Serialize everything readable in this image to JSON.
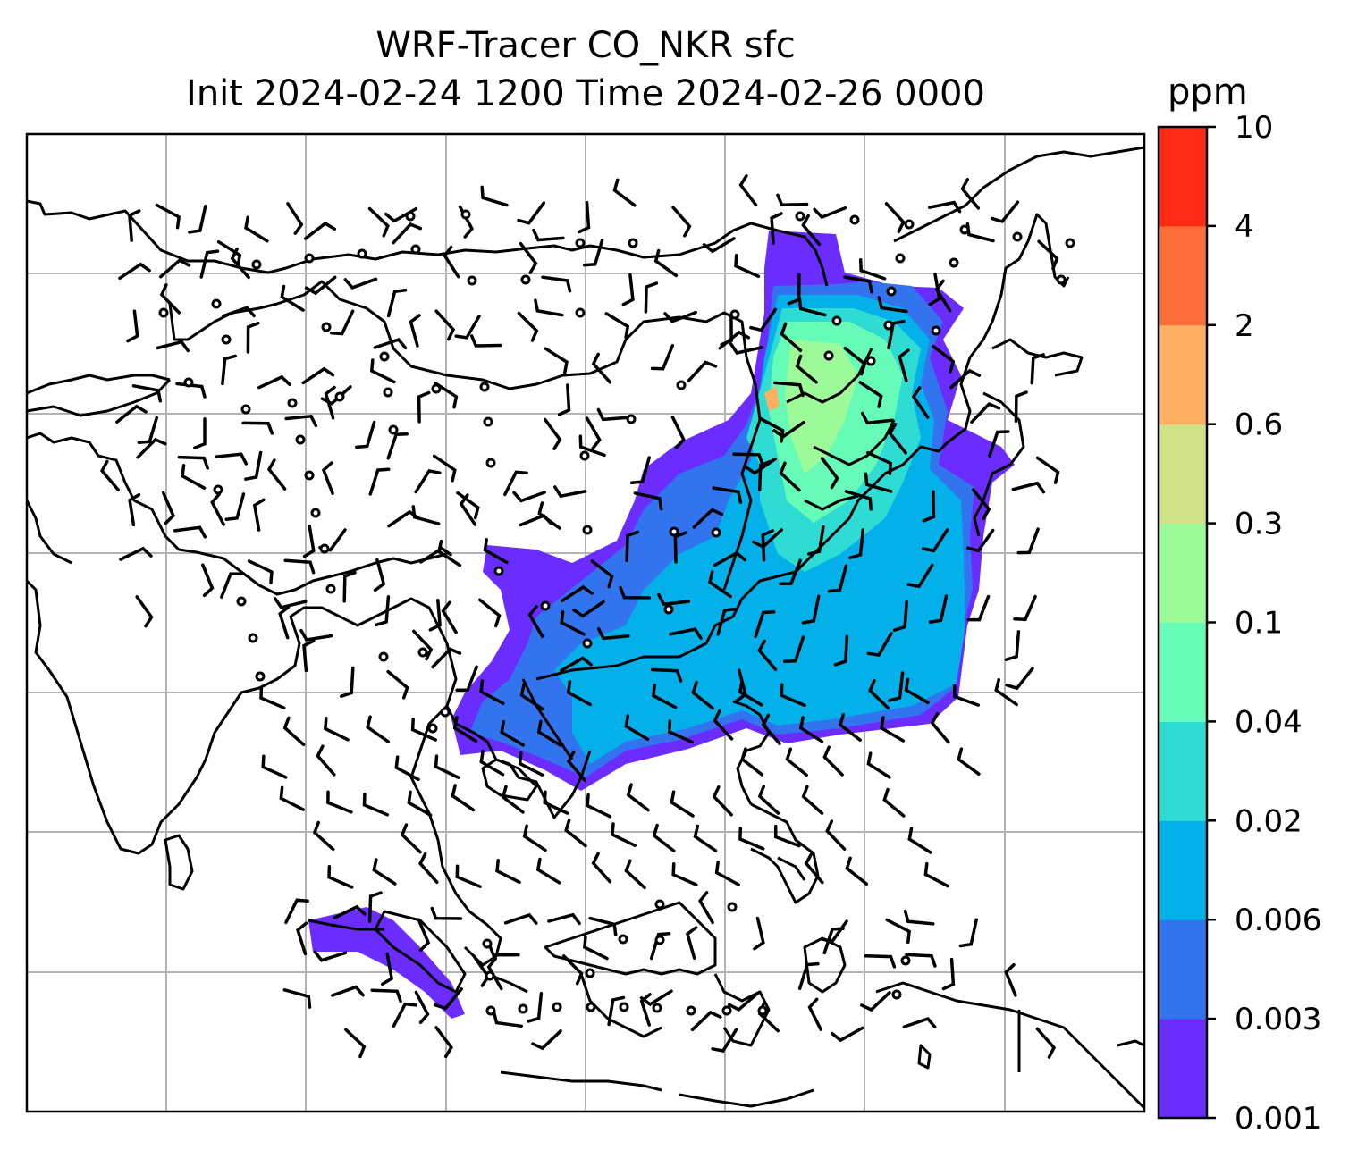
{
  "title": {
    "line1": "WRF-Tracer CO_NKR sfc",
    "line2": "Init 2024-02-24 1200 Time 2024-02-26 0000"
  },
  "colorbar": {
    "unit": "ppm",
    "ticks": [
      "0.001",
      "0.003",
      "0.006",
      "0.02",
      "0.04",
      "0.1",
      "0.3",
      "0.6",
      "2",
      "4",
      "10"
    ],
    "colors": [
      "#6a2cff",
      "#3174ee",
      "#03b0ea",
      "#2fdcd3",
      "#67fbb8",
      "#9dfa99",
      "#cfe189",
      "#fdaf62",
      "#fd6f3a",
      "#fe2a16"
    ]
  },
  "map": {
    "plume_colors": {
      "outer": "#6a2cff",
      "low": "#3174ee",
      "mid": "#03b0ea",
      "teal": "#2fdcd3",
      "green": "#67fbb8",
      "light": "#9dfa99",
      "hot": "#fdaf62"
    },
    "gridline_color": "#b3b3b3",
    "icons": [
      "wind-barb-icon",
      "calm-wind-circle-icon"
    ]
  }
}
